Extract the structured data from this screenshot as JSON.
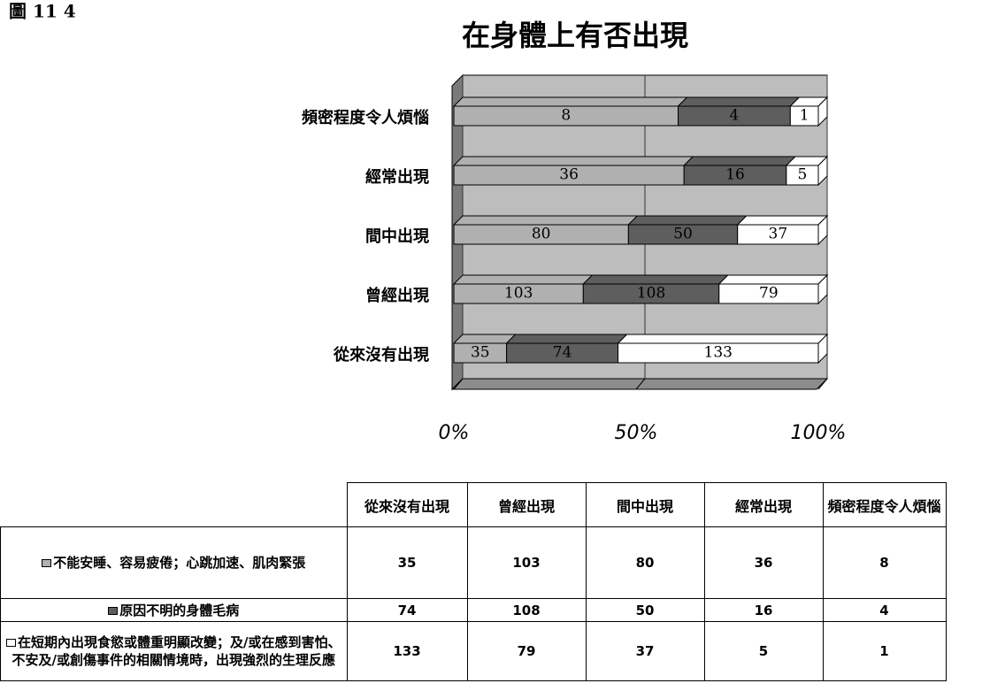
{
  "chart_data": {
    "type": "bar",
    "orientation": "horizontal",
    "stacked": "percent",
    "figure_label": "圖 11 4",
    "title": "在身體上有否出現",
    "categories": [
      "從來沒有出現",
      "曾經出現",
      "間中出現",
      "經常出現",
      "頻密程度令人煩惱"
    ],
    "series": [
      {
        "name": "不能安睡、容易疲倦；心跳加速、肌肉緊張",
        "color": "#b0b0b0",
        "values": [
          35,
          103,
          80,
          36,
          8
        ]
      },
      {
        "name": "原因不明的身體毛病",
        "color": "#5e5e5e",
        "values": [
          74,
          108,
          50,
          16,
          4
        ]
      },
      {
        "name": "在短期內出現食慾或體重明顯改變；及/或在感到害怕、不安及/或創傷事件的相關情境時，出現強烈的生理反應",
        "color": "#ffffff",
        "values": [
          133,
          79,
          37,
          5,
          1
        ]
      }
    ],
    "xlim": [
      0,
      100
    ],
    "xticks": [
      {
        "value": 0,
        "label": "0%"
      },
      {
        "value": 50,
        "label": "50%"
      },
      {
        "value": 100,
        "label": "100%"
      }
    ],
    "grid": true
  }
}
